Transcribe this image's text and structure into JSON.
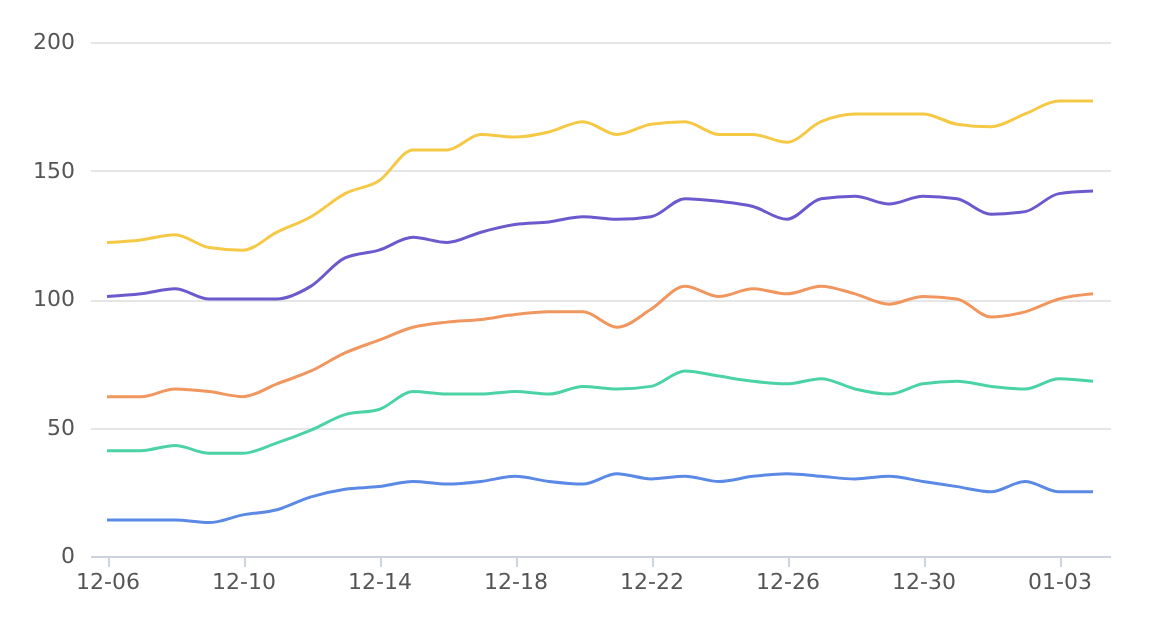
{
  "chart_data": {
    "type": "line",
    "categories": [
      "12-06",
      null,
      null,
      null,
      "12-10",
      null,
      null,
      null,
      "12-14",
      null,
      null,
      null,
      "12-18",
      null,
      null,
      null,
      "12-22",
      null,
      null,
      null,
      "12-26",
      null,
      null,
      null,
      "12-30",
      null,
      null,
      null,
      "01-03",
      null
    ],
    "series": [
      {
        "color": "#f5c946",
        "values": [
          122,
          123,
          125,
          120,
          119,
          126,
          132,
          141,
          146,
          158,
          158,
          164,
          163,
          165,
          169,
          164,
          168,
          169,
          164,
          164,
          161,
          169,
          172,
          172,
          172,
          168,
          167,
          172,
          177,
          177
        ]
      },
      {
        "color": "#6a5acd",
        "values": [
          101,
          102,
          104,
          100,
          100,
          100,
          105,
          116,
          119,
          124,
          122,
          126,
          129,
          130,
          132,
          131,
          132,
          139,
          138,
          136,
          131,
          139,
          140,
          137,
          140,
          139,
          133,
          134,
          141,
          142
        ]
      },
      {
        "color": "#f0965e",
        "values": [
          62,
          62,
          65,
          64,
          62,
          67,
          72,
          79,
          84,
          89,
          91,
          92,
          94,
          95,
          95,
          89,
          96,
          105,
          101,
          104,
          102,
          105,
          102,
          98,
          101,
          100,
          93,
          95,
          100,
          102
        ]
      },
      {
        "color": "#4cd3a4",
        "values": [
          41,
          41,
          43,
          40,
          40,
          44,
          49,
          55,
          57,
          64,
          63,
          63,
          64,
          63,
          66,
          65,
          66,
          72,
          70,
          68,
          67,
          69,
          65,
          63,
          67,
          68,
          66,
          65,
          69,
          68
        ]
      },
      {
        "color": "#5a8ae6",
        "values": [
          14,
          14,
          14,
          13,
          16,
          18,
          23,
          26,
          27,
          29,
          28,
          29,
          31,
          29,
          28,
          32,
          30,
          31,
          29,
          31,
          32,
          31,
          30,
          31,
          29,
          27,
          25,
          29,
          25,
          25
        ]
      }
    ],
    "ylim": [
      0,
      200
    ],
    "yticks": [
      0,
      50,
      100,
      150,
      200
    ],
    "grid": "y"
  }
}
